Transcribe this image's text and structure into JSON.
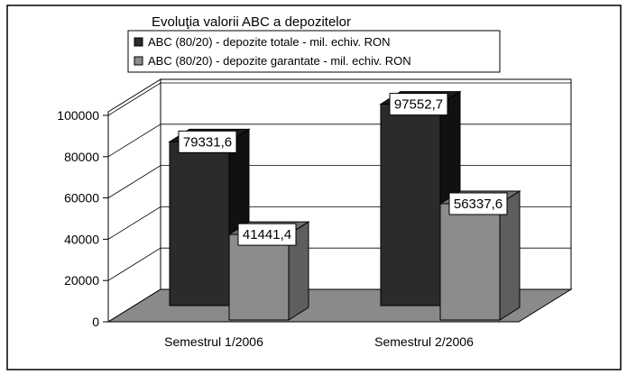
{
  "chart_data": {
    "type": "bar",
    "title": "Evoluţia valorii ABC a depozitelor",
    "categories": [
      "Semestrul 1/2006",
      "Semestrul 2/2006"
    ],
    "series": [
      {
        "name": "ABC (80/20) -  depozite totale - mil. echiv. RON",
        "values": [
          79331.6,
          97552.7
        ],
        "labels": [
          "79331,6",
          "97552,7"
        ]
      },
      {
        "name": "ABC (80/20) -  depozite garantate - mil. echiv. RON",
        "values": [
          41441.4,
          56337.6
        ],
        "labels": [
          "41441,4",
          "56337,6"
        ]
      }
    ],
    "yticks": [
      "0",
      "20000",
      "40000",
      "60000",
      "80000",
      "100000"
    ],
    "ylim": [
      0,
      100000
    ],
    "grid": true,
    "legend_position": "top-left",
    "three_d": true
  },
  "colors": {
    "series_dark": "#2b2b2b",
    "series_gray": "#8c8c8c",
    "floor": "#8a8a8a",
    "wall": "#ffffff",
    "frame": "#000000"
  }
}
